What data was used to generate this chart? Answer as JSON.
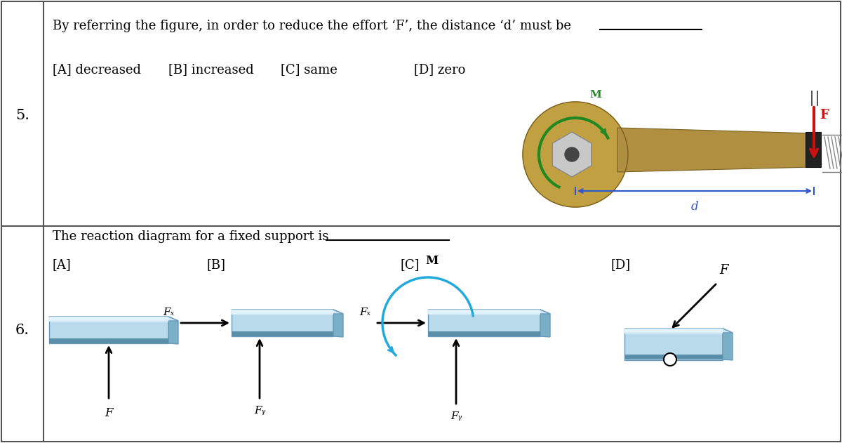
{
  "bg_color": "#ffffff",
  "border_color": "#555555",
  "q5_number": "5.",
  "q5_text": "By referring the figure, in order to reduce the effort ‘F’, the distance ‘d’ must be",
  "q5_options": [
    "[A] decreased",
    "[B] increased",
    "[C] same",
    "[D] zero"
  ],
  "q6_number": "6.",
  "q6_text": "The reaction diagram for a fixed support is",
  "q6_options": [
    "[A]",
    "[B]",
    "[C]",
    "[D]"
  ],
  "text_fontsize": 13,
  "option_fontsize": 13,
  "num_fontsize": 15,
  "wrench_body_color": "#b09040",
  "wrench_dark": "#7a6020",
  "wrench_head_color": "#c0a040",
  "wrench_inner": "#999999",
  "green_arrow": "#228822",
  "red_arrow": "#cc1111",
  "blue_arc": "#22aadd",
  "beam_top": "#d8eef8",
  "beam_mid": "#88bbd8",
  "beam_bot": "#6699bb",
  "beam_end_top": "#aaccdd",
  "beam_end_bot": "#5588aa",
  "black": "#111111",
  "dim_blue": "#3355cc"
}
